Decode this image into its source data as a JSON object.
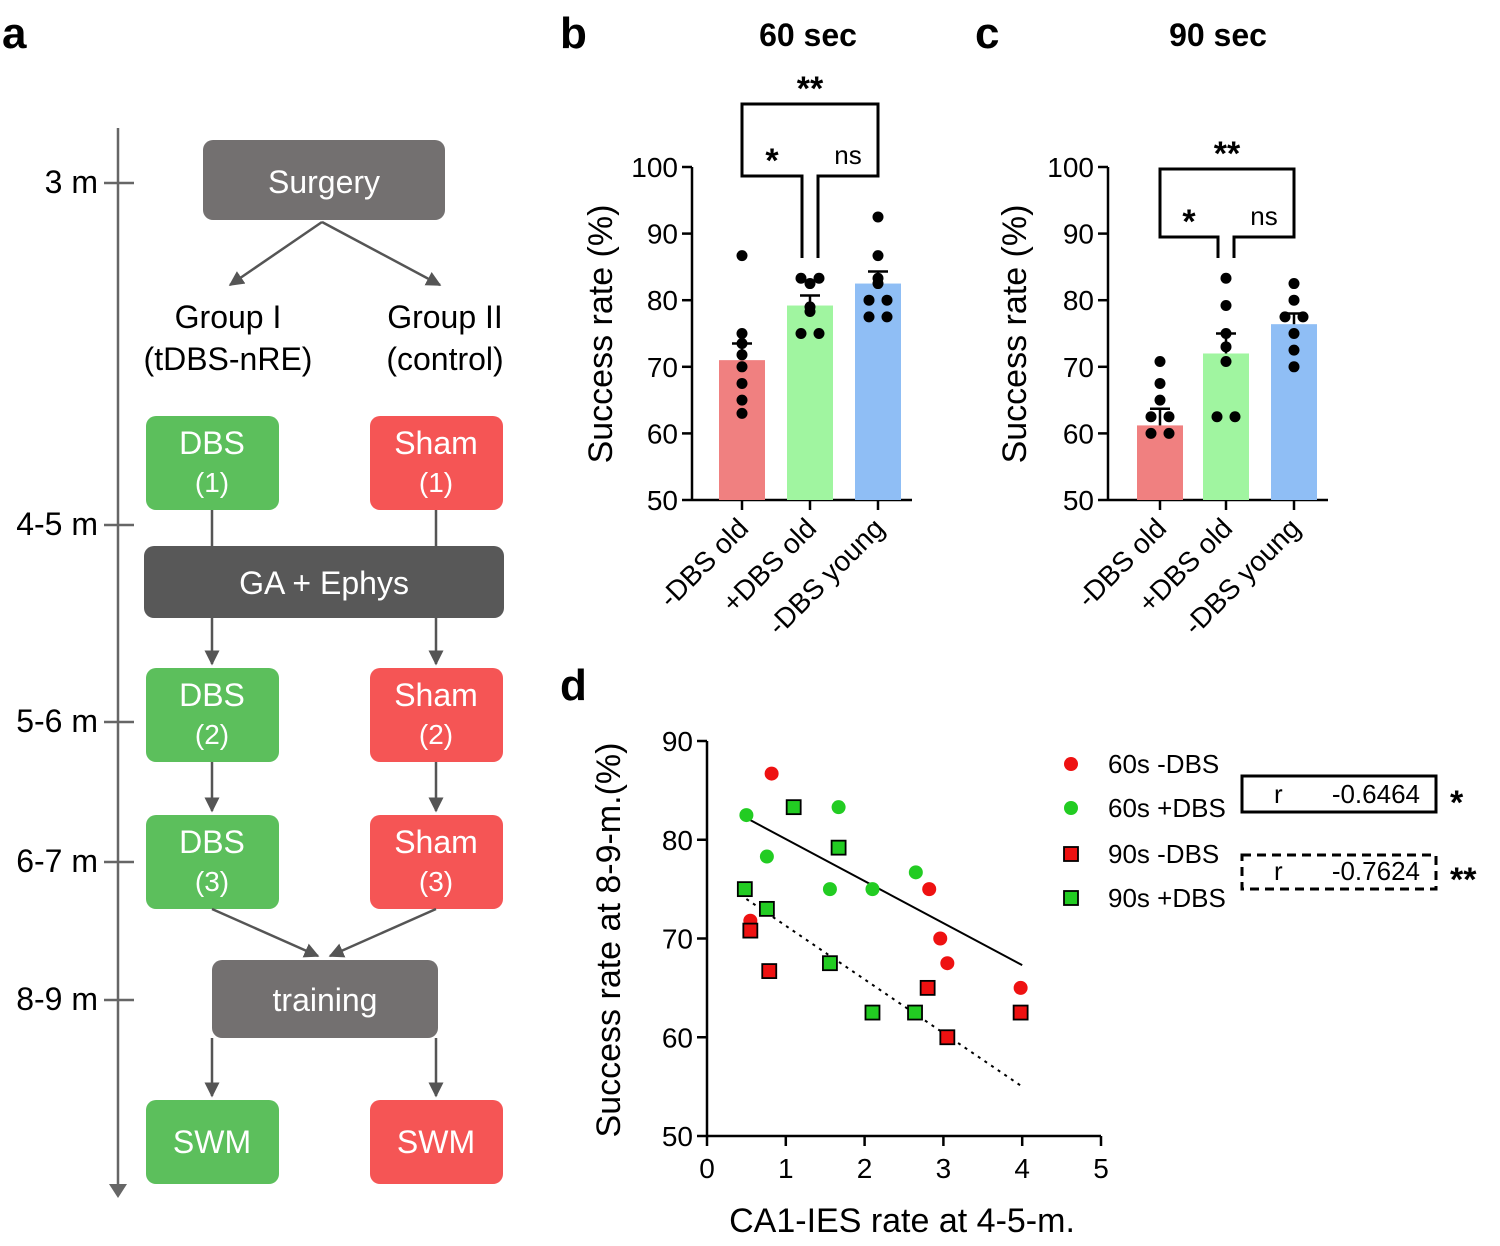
{
  "panels": {
    "a": "a",
    "b": "b",
    "c": "c",
    "d": "d"
  },
  "colors": {
    "green_box": "#5cbf5c",
    "red_box": "#f55555",
    "gray_box": "#737070",
    "dark_box": "#585858",
    "bar_red": "#f08080",
    "bar_green": "#a0f5a0",
    "bar_blue": "#8fbef5",
    "dot_red": "#ee1111",
    "dot_green": "#22cc22"
  },
  "flowchart": {
    "timeline": [
      "3 m",
      "4-5 m",
      "5-6 m",
      "6-7 m",
      "8-9 m"
    ],
    "surgery": "Surgery",
    "group1": {
      "line1": "Group I",
      "line2": "(tDBS-nRE)"
    },
    "group2": {
      "line1": "Group II",
      "line2": "(control)"
    },
    "dbs1": {
      "label": "DBS",
      "sub": "(1)"
    },
    "sham1": {
      "label": "Sham",
      "sub": "(1)"
    },
    "ga": "GA + Ephys",
    "dbs2": {
      "label": "DBS",
      "sub": "(2)"
    },
    "sham2": {
      "label": "Sham",
      "sub": "(2)"
    },
    "dbs3": {
      "label": "DBS",
      "sub": "(3)"
    },
    "sham3": {
      "label": "Sham",
      "sub": "(3)"
    },
    "training": "training",
    "swm_left": "SWM",
    "swm_right": "SWM"
  },
  "chart_data": [
    {
      "id": "b",
      "type": "bar",
      "title": "60 sec",
      "ylabel": "Success rate (%)",
      "ylim": [
        50,
        100
      ],
      "yticks": [
        "50",
        "60",
        "70",
        "80",
        "90",
        "100"
      ],
      "categories": [
        "-DBS old",
        "+DBS old",
        "-DBS young"
      ],
      "values": [
        71.0,
        79.2,
        82.5
      ],
      "sem": [
        2.5,
        1.5,
        1.8
      ],
      "points": [
        [
          86.7,
          75.0,
          73.5,
          71.8,
          70.0,
          67.5,
          65.0,
          63.0
        ],
        [
          83.3,
          83.3,
          82.5,
          79.0,
          78.3,
          75.0,
          75.0
        ],
        [
          92.5,
          86.7,
          83.3,
          82.5,
          80.0,
          80.0,
          77.5,
          77.5
        ]
      ],
      "significance": [
        {
          "from": 0,
          "to": 2,
          "label": "**"
        },
        {
          "from": 0,
          "to": 1,
          "label": "*"
        },
        {
          "from": 1,
          "to": 2,
          "label": "ns"
        }
      ]
    },
    {
      "id": "c",
      "type": "bar",
      "title": "90 sec",
      "ylabel": "Success rate (%)",
      "ylim": [
        50,
        100
      ],
      "yticks": [
        "50",
        "60",
        "70",
        "80",
        "90",
        "100"
      ],
      "categories": [
        "-DBS old",
        "+DBS old",
        "-DBS young"
      ],
      "values": [
        61.2,
        72.0,
        76.4
      ],
      "sem": [
        2.5,
        3.0,
        1.6
      ],
      "points": [
        [
          70.8,
          67.5,
          65.0,
          62.5,
          62.5,
          60.0,
          60.0
        ],
        [
          83.3,
          79.2,
          75.0,
          73.0,
          70.8,
          62.5,
          62.5
        ],
        [
          82.5,
          80.0,
          77.5,
          77.5,
          75.0,
          72.5,
          70.0
        ]
      ],
      "significance": [
        {
          "from": 0,
          "to": 2,
          "label": "**"
        },
        {
          "from": 0,
          "to": 1,
          "label": "*"
        },
        {
          "from": 1,
          "to": 2,
          "label": "ns"
        }
      ]
    },
    {
      "id": "d",
      "type": "scatter",
      "xlabel": "CA1-IES rate at 4-5-m.",
      "ylabel": "Success rate at 8-9-m.(%)",
      "xlim": [
        0,
        5
      ],
      "ylim": [
        50,
        90
      ],
      "xticks": [
        "0",
        "1",
        "2",
        "3",
        "4",
        "5"
      ],
      "yticks": [
        "50",
        "60",
        "70",
        "80",
        "90"
      ],
      "series": [
        {
          "name": "60s -DBS",
          "marker": "circle",
          "color": "red",
          "x": [
            0.82,
            0.55,
            2.82,
            2.96,
            3.05,
            3.98
          ],
          "y": [
            86.7,
            71.8,
            75.0,
            70.0,
            67.5,
            65.0
          ]
        },
        {
          "name": "60s +DBS",
          "marker": "circle",
          "color": "green",
          "x": [
            0.5,
            0.76,
            1.67,
            1.56,
            2.1,
            2.65
          ],
          "y": [
            82.5,
            78.3,
            83.3,
            75.0,
            75.0,
            76.7
          ]
        },
        {
          "name": "90s -DBS",
          "marker": "square",
          "color": "red",
          "x": [
            0.55,
            0.79,
            2.8,
            3.05,
            3.98
          ],
          "y": [
            70.8,
            66.7,
            65.0,
            60.0,
            62.5
          ]
        },
        {
          "name": "90s +DBS",
          "marker": "square",
          "color": "green",
          "x": [
            0.48,
            0.76,
            1.1,
            1.67,
            1.56,
            2.1,
            2.64
          ],
          "y": [
            75.0,
            73.0,
            83.3,
            79.2,
            67.5,
            62.5,
            62.5
          ]
        }
      ],
      "fits": [
        {
          "style": "solid",
          "x": [
            0.5,
            4.0
          ],
          "y": [
            82.2,
            67.3
          ]
        },
        {
          "style": "dotted",
          "x": [
            0.5,
            4.0
          ],
          "y": [
            74.0,
            55.0
          ]
        }
      ],
      "stats": [
        {
          "style": "solid",
          "label": "r",
          "value": "-0.6464",
          "sig": "*"
        },
        {
          "style": "dashed",
          "label": "r",
          "value": "-0.7624",
          "sig": "**"
        }
      ]
    }
  ]
}
